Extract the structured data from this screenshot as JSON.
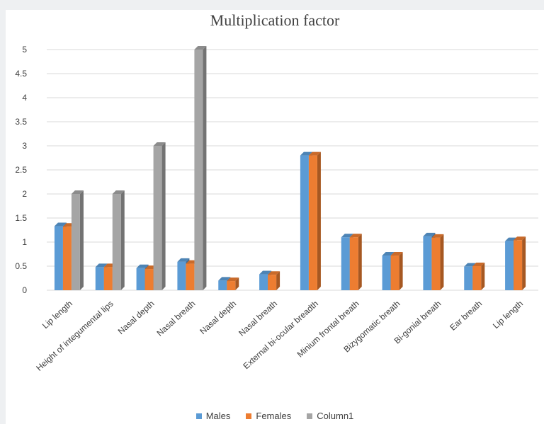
{
  "chart_data": {
    "type": "bar",
    "title": "Multiplication factor",
    "xlabel": "",
    "ylabel": "",
    "ylim": [
      0,
      5
    ],
    "yticks": [
      "0",
      "0.5",
      "1",
      "1.5",
      "2",
      "2.5",
      "3",
      "3.5",
      "4",
      "4.5",
      "5"
    ],
    "categories": [
      "Lip length",
      "Height of integumental lips",
      "Nasal depth",
      "Nasal breath",
      "Nasal depth",
      "Nasal breath",
      "External bi-ocular breadth",
      "Minium frontal breath",
      "Bizygomatic breath",
      "Bi-gonial breath",
      "Ear breath",
      "Lip length"
    ],
    "series": [
      {
        "name": "Males",
        "color": "#5b9bd5",
        "values": [
          1.33,
          0.48,
          0.46,
          0.59,
          0.2,
          0.33,
          2.8,
          1.1,
          0.72,
          1.12,
          0.49,
          1.02
        ]
      },
      {
        "name": "Females",
        "color": "#ed7d31",
        "values": [
          1.32,
          0.48,
          0.44,
          0.55,
          0.19,
          0.32,
          2.8,
          1.1,
          0.72,
          1.09,
          0.5,
          1.04
        ]
      },
      {
        "name": "Column1",
        "color": "#a5a5a5",
        "values": [
          2,
          2,
          3,
          5,
          null,
          null,
          null,
          null,
          null,
          null,
          null,
          null
        ]
      }
    ],
    "grid": true,
    "legend_position": "bottom"
  }
}
